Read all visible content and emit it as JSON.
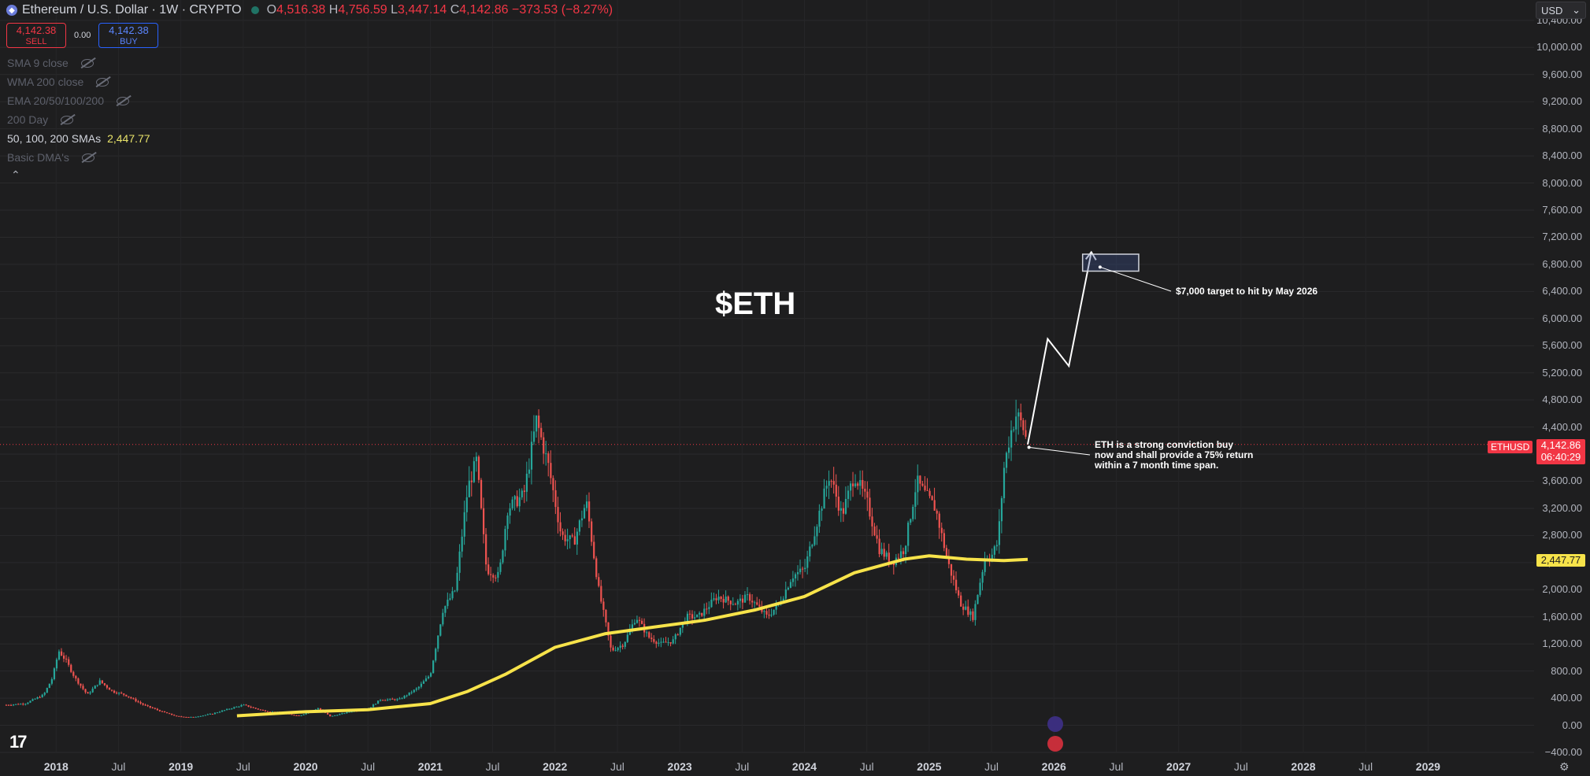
{
  "header": {
    "symbol": "Ethereum / U.S. Dollar · 1W · CRYPTO",
    "open_label": "O",
    "open": "4,516.38",
    "high_label": "H",
    "high": "4,756.59",
    "low_label": "L",
    "low": "3,447.14",
    "close_label": "C",
    "close": "4,142.86",
    "change": "−373.53 (−8.27%)"
  },
  "trade": {
    "sell_price": "4,142.38",
    "sell_label": "SELL",
    "spread": "0.00",
    "buy_price": "4,142.38",
    "buy_label": "BUY"
  },
  "indicators": [
    {
      "label": "SMA 9 close",
      "visible": false
    },
    {
      "label": "WMA 200 close",
      "visible": false
    },
    {
      "label": "EMA 20/50/100/200",
      "visible": false
    },
    {
      "label": "200 Day",
      "visible": false
    },
    {
      "label": "50, 100, 200 SMAs",
      "visible": true,
      "value": "2,447.77"
    },
    {
      "label": "Basic DMA's",
      "visible": false
    }
  ],
  "currency": "USD",
  "price_tag": {
    "symbol": "ETHUSD",
    "price": "4,142.86",
    "countdown": "06:40:29"
  },
  "ma_tag": "2,447.77",
  "annotations": {
    "title": "$ETH",
    "target_note": "$7,000 target to hit by May 2026",
    "conviction_note": [
      "ETH is a strong conviction buy",
      "now and shall provide a 75% return",
      "within a 7 month time span."
    ]
  },
  "logo": "17",
  "colors": {
    "up": "#26a69a",
    "down": "#ef5350",
    "ma": "#f7e34a",
    "background": "#1e1e1f"
  },
  "chart_data": {
    "type": "candlestick",
    "x_ticks": [
      "2018",
      "Jul",
      "2019",
      "Jul",
      "2020",
      "Jul",
      "2021",
      "Jul",
      "2022",
      "Jul",
      "2023",
      "Jul",
      "2024",
      "Jul",
      "2025",
      "Jul",
      "2026",
      "Jul",
      "2027",
      "Jul",
      "2028",
      "Jul",
      "2029"
    ],
    "y_ticks": [
      "10,400.00",
      "10,000.00",
      "9,600.00",
      "9,200.00",
      "8,800.00",
      "8,400.00",
      "8,000.00",
      "7,600.00",
      "7,200.00",
      "6,800.00",
      "6,400.00",
      "6,000.00",
      "5,600.00",
      "5,200.00",
      "4,800.00",
      "4,400.00",
      "4,000.00",
      "3,600.00",
      "3,200.00",
      "2,800.00",
      "2,400.00",
      "2,000.00",
      "1,600.00",
      "1,200.00",
      "800.00",
      "400.00",
      "0.00",
      "−400.00"
    ],
    "ylim": [
      -400,
      10700
    ],
    "xlim": [
      2017.55,
      2029.85
    ],
    "price_series": [
      [
        2017.6,
        300
      ],
      [
        2017.75,
        320
      ],
      [
        2017.9,
        450
      ],
      [
        2017.97,
        700
      ],
      [
        2018.02,
        1100
      ],
      [
        2018.08,
        950
      ],
      [
        2018.15,
        700
      ],
      [
        2018.25,
        450
      ],
      [
        2018.35,
        650
      ],
      [
        2018.45,
        500
      ],
      [
        2018.55,
        450
      ],
      [
        2018.7,
        300
      ],
      [
        2018.85,
        200
      ],
      [
        2018.97,
        130
      ],
      [
        2019.1,
        120
      ],
      [
        2019.25,
        170
      ],
      [
        2019.4,
        250
      ],
      [
        2019.5,
        300
      ],
      [
        2019.65,
        220
      ],
      [
        2019.8,
        180
      ],
      [
        2019.95,
        140
      ],
      [
        2020.1,
        250
      ],
      [
        2020.2,
        130
      ],
      [
        2020.35,
        200
      ],
      [
        2020.5,
        240
      ],
      [
        2020.6,
        380
      ],
      [
        2020.75,
        380
      ],
      [
        2020.9,
        550
      ],
      [
        2021.0,
        750
      ],
      [
        2021.1,
        1700
      ],
      [
        2021.2,
        2000
      ],
      [
        2021.3,
        3500
      ],
      [
        2021.37,
        3900
      ],
      [
        2021.45,
        2300
      ],
      [
        2021.55,
        2200
      ],
      [
        2021.62,
        3200
      ],
      [
        2021.75,
        3400
      ],
      [
        2021.85,
        4500
      ],
      [
        2021.95,
        3800
      ],
      [
        2022.05,
        2800
      ],
      [
        2022.15,
        2700
      ],
      [
        2022.25,
        3300
      ],
      [
        2022.35,
        2000
      ],
      [
        2022.45,
        1100
      ],
      [
        2022.55,
        1200
      ],
      [
        2022.65,
        1600
      ],
      [
        2022.75,
        1300
      ],
      [
        2022.85,
        1200
      ],
      [
        2022.95,
        1250
      ],
      [
        2023.05,
        1600
      ],
      [
        2023.15,
        1600
      ],
      [
        2023.3,
        1900
      ],
      [
        2023.45,
        1800
      ],
      [
        2023.55,
        1900
      ],
      [
        2023.7,
        1600
      ],
      [
        2023.8,
        1800
      ],
      [
        2023.9,
        2200
      ],
      [
        2024.0,
        2300
      ],
      [
        2024.1,
        3000
      ],
      [
        2024.2,
        3700
      ],
      [
        2024.3,
        3100
      ],
      [
        2024.4,
        3700
      ],
      [
        2024.5,
        3300
      ],
      [
        2024.6,
        2600
      ],
      [
        2024.7,
        2400
      ],
      [
        2024.8,
        2600
      ],
      [
        2024.9,
        3600
      ],
      [
        2024.97,
        3400
      ],
      [
        2025.05,
        3200
      ],
      [
        2025.15,
        2400
      ],
      [
        2025.25,
        1800
      ],
      [
        2025.35,
        1600
      ],
      [
        2025.45,
        2500
      ],
      [
        2025.5,
        2500
      ],
      [
        2025.55,
        2700
      ],
      [
        2025.6,
        3800
      ],
      [
        2025.65,
        4300
      ],
      [
        2025.7,
        4600
      ],
      [
        2025.75,
        4400
      ],
      [
        2025.79,
        4143
      ]
    ],
    "sma_200": [
      [
        2019.45,
        140
      ],
      [
        2020.0,
        200
      ],
      [
        2020.5,
        230
      ],
      [
        2021.0,
        320
      ],
      [
        2021.3,
        500
      ],
      [
        2021.6,
        750
      ],
      [
        2022.0,
        1150
      ],
      [
        2022.4,
        1350
      ],
      [
        2022.8,
        1450
      ],
      [
        2023.2,
        1550
      ],
      [
        2023.6,
        1700
      ],
      [
        2024.0,
        1900
      ],
      [
        2024.4,
        2250
      ],
      [
        2024.8,
        2450
      ],
      [
        2025.0,
        2500
      ],
      [
        2025.3,
        2450
      ],
      [
        2025.6,
        2430
      ],
      [
        2025.79,
        2448
      ]
    ],
    "projection": [
      [
        2025.79,
        4143
      ],
      [
        2025.95,
        5700
      ],
      [
        2026.12,
        5300
      ],
      [
        2026.3,
        6980
      ]
    ],
    "target_box": {
      "x": [
        2026.23,
        2026.68
      ],
      "y": [
        6700,
        6950
      ]
    },
    "current_price": 4142.86
  }
}
